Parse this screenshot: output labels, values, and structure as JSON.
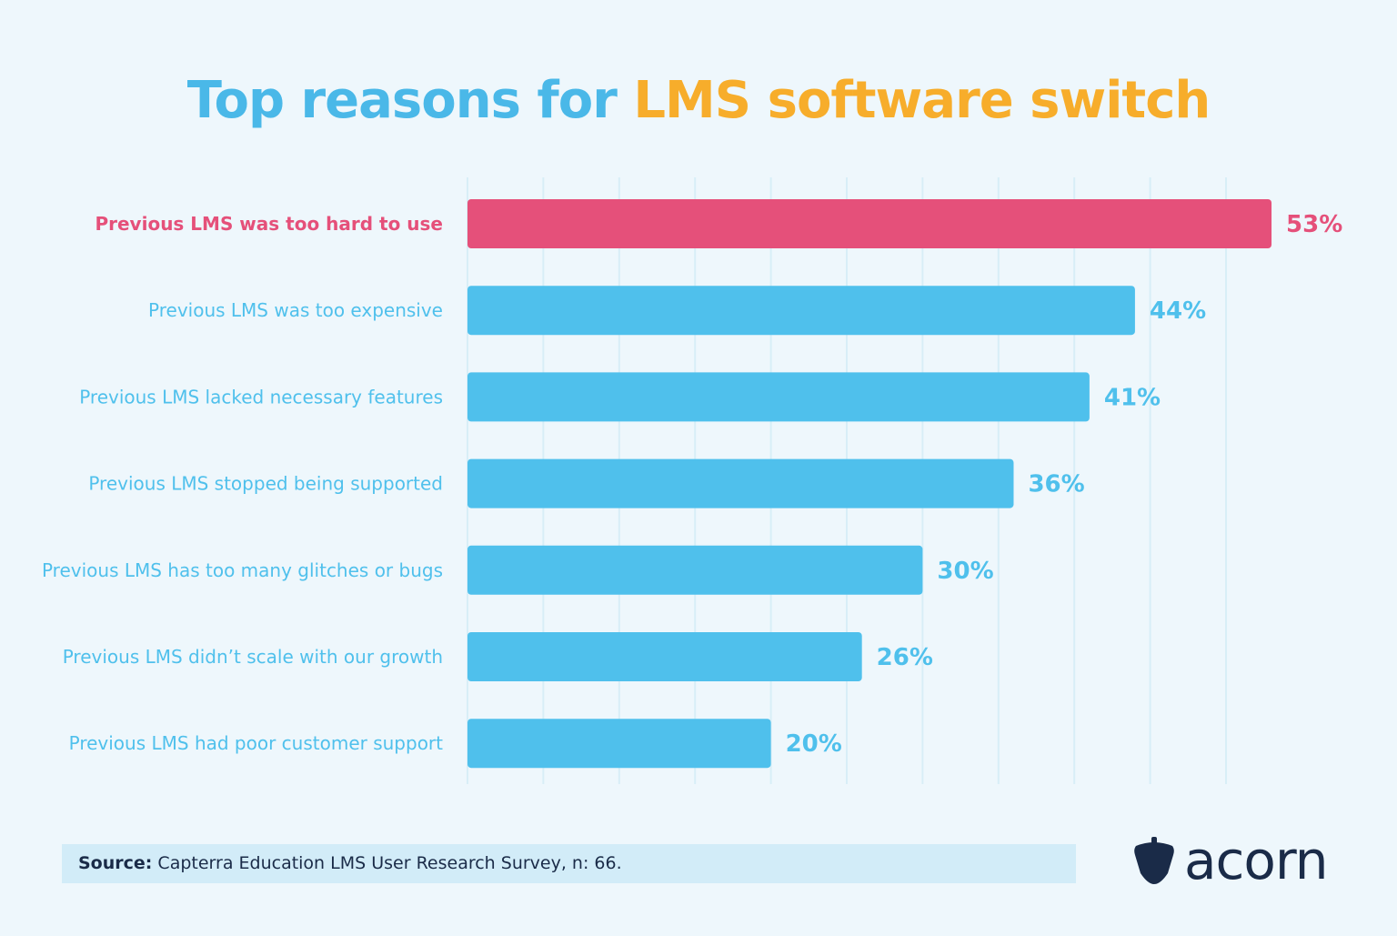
{
  "title": {
    "part1": "Top reasons for ",
    "part2": "LMS software switch"
  },
  "colors": {
    "title_blue": "#4ab8e8",
    "title_orange": "#f7ad2b",
    "bar": "#4fc0ec",
    "highlight": "#e5507a",
    "grid": "#d8eef7",
    "text_dark": "#1a2b48"
  },
  "chart_data": {
    "type": "bar",
    "orientation": "horizontal",
    "categories": [
      "Previous LMS was too hard to use",
      "Previous LMS was too expensive",
      "Previous LMS lacked necessary features",
      "Previous LMS stopped being supported",
      "Previous LMS has too many glitches or bugs",
      "Previous LMS didn’t scale with our growth",
      "Previous LMS had poor customer support"
    ],
    "values": [
      53,
      44,
      41,
      36,
      30,
      26,
      20
    ],
    "value_labels": [
      "53%",
      "44%",
      "41%",
      "36%",
      "30%",
      "26%",
      "20%"
    ],
    "highlighted_index": 0,
    "xlim": [
      0,
      55
    ],
    "grid": "vertical, every 5%",
    "title": "Top reasons for LMS software switch"
  },
  "source": {
    "label": "Source:",
    "text": " Capterra Education LMS User Research Survey, n: 66."
  },
  "logo": {
    "text": "acorn"
  }
}
